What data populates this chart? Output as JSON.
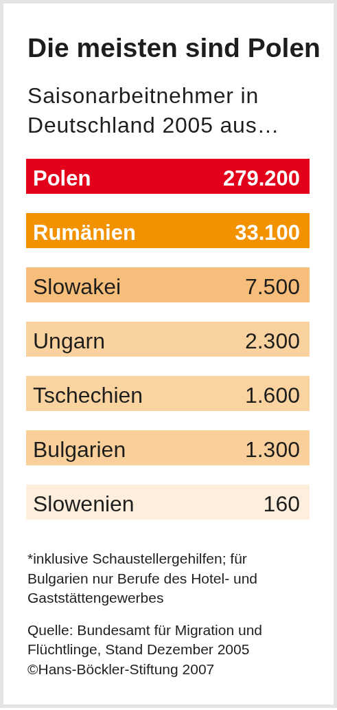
{
  "chart_data": {
    "type": "other",
    "title": "Die meisten sind Polen",
    "subtitle": "Saisonarbeitnehmer in Deutschland 2005 aus…",
    "categories": [
      "Polen",
      "Rumänien",
      "Slowakei",
      "Ungarn",
      "Tschechien",
      "Bulgarien",
      "Slowenien"
    ],
    "values": [
      279200,
      33100,
      7500,
      2300,
      1600,
      1300,
      160
    ],
    "value_labels": [
      "279.200",
      "33.100",
      "7.500",
      "2.300",
      "1.600",
      "1.300",
      "160"
    ],
    "colors": [
      "#e2001a",
      "#f39200",
      "#f7bd7a",
      "#fad29f",
      "#fad3a1",
      "#f9cf9b",
      "#fdeedd"
    ],
    "annotations": [
      "*inklusive Schaustellergehilfen; für Bulgarien nur Berufe des Hotel- und Gaststättengewerbes",
      "Quelle: Bundesamt für Migration und Flüchtlinge, Stand Dezember 2005",
      "©Hans-Böckler-Stiftung 2007"
    ]
  }
}
